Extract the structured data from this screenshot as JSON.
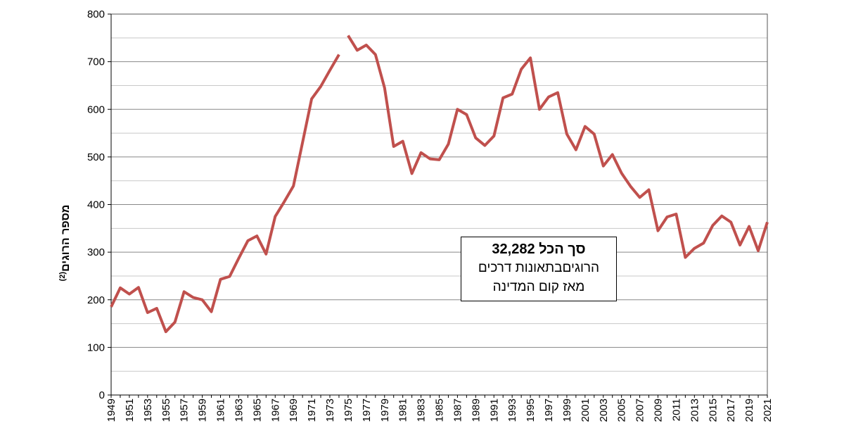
{
  "chart_data": {
    "type": "line",
    "ylabel": "מספר הרוגים",
    "ylabel_sup": "(2)",
    "ylim": [
      0,
      800
    ],
    "yticks": [
      0,
      100,
      200,
      300,
      400,
      500,
      600,
      700,
      800
    ],
    "xlim": [
      1949,
      2021
    ],
    "xticks": [
      1949,
      1951,
      1953,
      1955,
      1957,
      1959,
      1961,
      1963,
      1965,
      1967,
      1969,
      1971,
      1973,
      1975,
      1977,
      1979,
      1981,
      1983,
      1985,
      1987,
      1989,
      1991,
      1993,
      1995,
      1997,
      1999,
      2001,
      2003,
      2005,
      2007,
      2009,
      2011,
      2013,
      2015,
      2017,
      2019,
      2021
    ],
    "grid": true,
    "line_color": "#c0504d",
    "series": [
      {
        "segments": [
          {
            "x": [
              1949,
              1950,
              1951,
              1952,
              1953,
              1954,
              1955,
              1956,
              1957,
              1958,
              1959,
              1960,
              1961,
              1962,
              1963,
              1964,
              1965,
              1966,
              1967,
              1968,
              1969,
              1970,
              1971,
              1972,
              1973,
              1974
            ],
            "values": [
              185,
              225,
              212,
              226,
              173,
              182,
              133,
              153,
              217,
              205,
              200,
              175,
              243,
              249,
              287,
              324,
              334,
              296,
              375,
              406,
              439,
              530,
              622,
              648,
              682,
              715
            ]
          },
          {
            "x": [
              1975,
              1976,
              1977,
              1978,
              1979,
              1980,
              1981,
              1982,
              1983,
              1984,
              1985,
              1986,
              1987,
              1988,
              1989,
              1990,
              1991,
              1992,
              1993,
              1994,
              1995,
              1996,
              1997,
              1998,
              1999,
              2000,
              2001,
              2002,
              2003,
              2004,
              2005,
              2006,
              2007,
              2008,
              2009,
              2010,
              2011,
              2012,
              2013,
              2014,
              2015,
              2016,
              2017,
              2018,
              2019,
              2020,
              2021
            ],
            "values": [
              755,
              724,
              735,
              715,
              645,
              522,
              533,
              465,
              509,
              496,
              494,
              527,
              600,
              589,
              540,
              524,
              544,
              624,
              632,
              684,
              708,
              600,
              626,
              635,
              548,
              515,
              564,
              548,
              481,
              505,
              466,
              438,
              415,
              431,
              345,
              374,
              380,
              289,
              308,
              319,
              356,
              376,
              363,
              315,
              354,
              303,
              363
            ]
          }
        ]
      }
    ],
    "annotation": {
      "line1": "סך הכל 32,282",
      "line2": "הרוגיםבתאונות דרכים",
      "line3": "מאז קום המדינה"
    }
  }
}
